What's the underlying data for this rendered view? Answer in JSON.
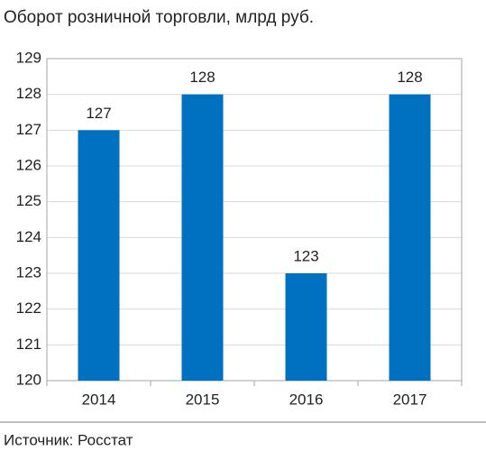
{
  "chart_data": {
    "type": "bar",
    "title": "Оборот розничной торговли, млрд руб.",
    "categories": [
      "2014",
      "2015",
      "2016",
      "2017"
    ],
    "values": [
      127,
      128,
      123,
      128
    ],
    "color": "#0070c0",
    "ylim": [
      120,
      129
    ],
    "yticks": [
      120,
      121,
      122,
      123,
      124,
      125,
      126,
      127,
      128,
      129
    ],
    "grid": true,
    "source": "Источник: Росстат"
  }
}
